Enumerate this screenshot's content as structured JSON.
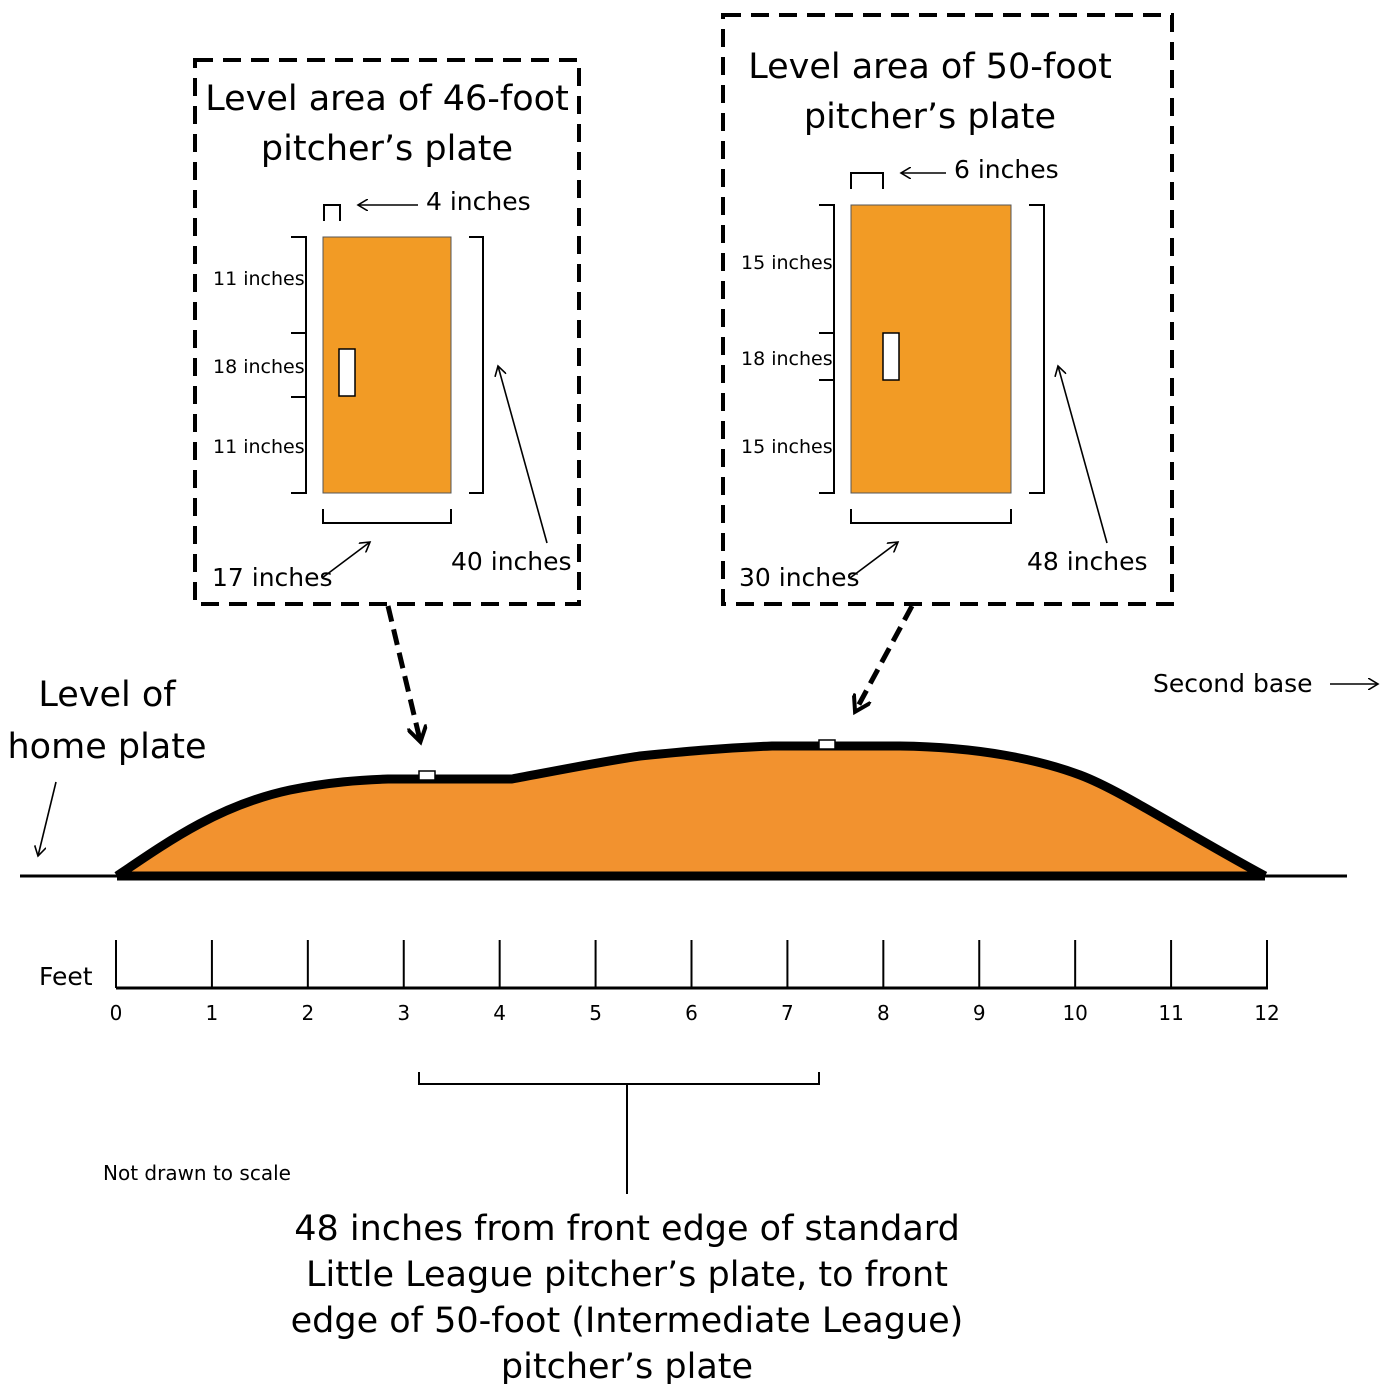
{
  "box46": {
    "title_line1": "Level area of 46-foot",
    "title_line2": "pitcher’s plate",
    "top_offset": "4 inches",
    "seg_top": "11 inches",
    "seg_mid": "18 inches",
    "seg_bottom": "11 inches",
    "width": "17 inches",
    "length": "40 inches"
  },
  "box50": {
    "title_line1": "Level area of 50-foot",
    "title_line2": "pitcher’s plate",
    "top_offset": "6 inches",
    "seg_top": "15 inches",
    "seg_mid": "18 inches",
    "seg_bottom": "15 inches",
    "width": "30 inches",
    "length": "48 inches"
  },
  "labels": {
    "home_plate_line1": "Level of",
    "home_plate_line2": "home plate",
    "second_base": "Second base",
    "feet": "Feet",
    "scale_note": "Not drawn to scale"
  },
  "ruler": {
    "ticks": [
      "0",
      "1",
      "2",
      "3",
      "4",
      "5",
      "6",
      "7",
      "8",
      "9",
      "10",
      "11",
      "12"
    ]
  },
  "caption": {
    "line1": "48 inches from front edge of standard",
    "line2": "Little League pitcher’s plate, to front",
    "line3": "edge of 50-foot (Intermediate League)",
    "line4": "pitcher’s plate"
  },
  "colors": {
    "mound_fill": "#F2922F",
    "level_area_fill": "#F29B25",
    "outline": "#000000"
  }
}
